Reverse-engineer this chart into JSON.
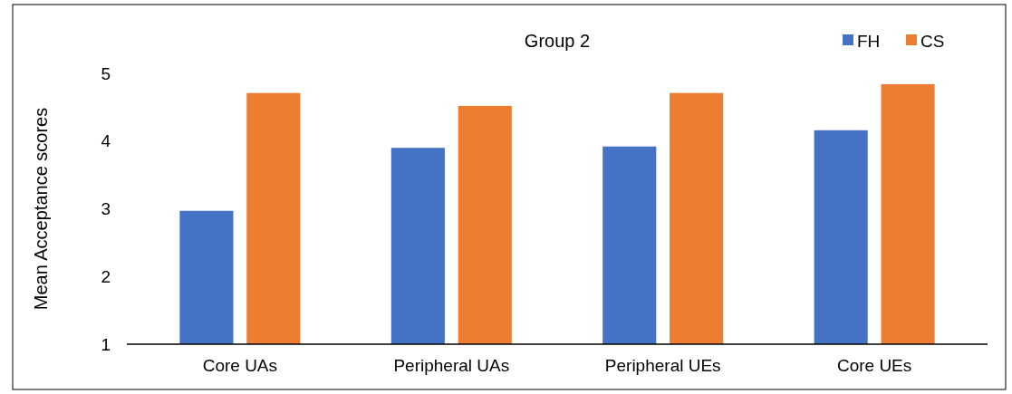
{
  "chart_data": {
    "type": "bar",
    "title": "Group 2",
    "ylabel": "Mean Acceptance scores",
    "categories": [
      "Core UAs",
      "Peripheral UAs",
      "Peripheral UEs",
      "Core UEs"
    ],
    "series": [
      {
        "name": "FH",
        "color": "#4472c4",
        "values": [
          2.97,
          3.9,
          3.92,
          4.16
        ]
      },
      {
        "name": "CS",
        "color": "#ed7d31",
        "values": [
          4.71,
          4.52,
          4.71,
          4.84
        ]
      }
    ],
    "ylim": [
      1,
      5
    ],
    "yticks": [
      1,
      2,
      3,
      4,
      5
    ],
    "grid": false,
    "legend": "top right"
  }
}
